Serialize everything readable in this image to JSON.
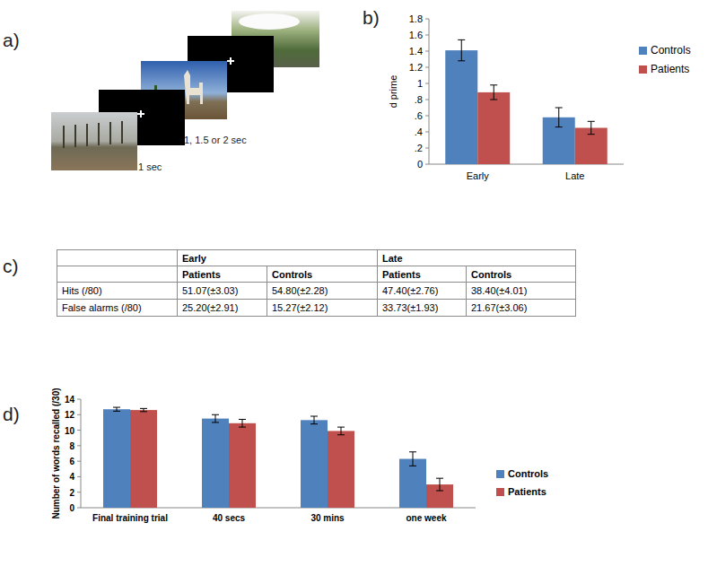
{
  "panel_labels": {
    "a": "a)",
    "b": "b)",
    "c": "c)",
    "d": "d)"
  },
  "stimulus": {
    "image_duration": "1 sec",
    "fixation_duration": "1, 1.5 or 2 sec"
  },
  "chart_data": [
    {
      "type": "bar",
      "ylabel": "d prime",
      "categories": [
        "Early",
        "Late"
      ],
      "series": [
        {
          "name": "Controls",
          "color": "#4f81bd",
          "values": [
            1.41,
            0.58
          ],
          "errors": [
            0.13,
            0.12
          ]
        },
        {
          "name": "Patients",
          "color": "#c0504d",
          "values": [
            0.89,
            0.45
          ],
          "errors": [
            0.09,
            0.08
          ]
        }
      ],
      "ylim": [
        0,
        1.8
      ],
      "yticks": [
        0,
        {
          "value": 0.2,
          "label": ".2"
        },
        {
          "value": 0.4,
          "label": ".4"
        },
        {
          "value": 0.6,
          "label": ".6"
        },
        {
          "value": 0.8,
          "label": ".8"
        },
        1,
        1.2,
        1.4,
        1.6,
        1.8
      ],
      "grid": false,
      "legend": "right"
    },
    {
      "type": "bar",
      "ylabel": "Number of words recalled (/30)",
      "categories": [
        "Final training trial",
        "40 secs",
        "30 mins",
        "one week"
      ],
      "series": [
        {
          "name": "Controls",
          "color": "#4f81bd",
          "values": [
            12.7,
            11.5,
            11.3,
            6.3
          ],
          "errors": [
            0.25,
            0.5,
            0.5,
            0.9
          ]
        },
        {
          "name": "Patients",
          "color": "#c0504d",
          "values": [
            12.6,
            10.9,
            9.9,
            3.0
          ],
          "errors": [
            0.2,
            0.5,
            0.5,
            0.8
          ]
        }
      ],
      "ylim": [
        0,
        14
      ],
      "yticks": [
        0,
        2,
        4,
        6,
        8,
        10,
        12,
        14
      ],
      "grid": false,
      "legend": "right"
    }
  ],
  "table": {
    "groups": [
      "Early",
      "Late"
    ],
    "subheader": [
      "Patients",
      "Controls",
      "Patients",
      "Controls"
    ],
    "rows": [
      [
        "Hits (/80)",
        "51.07(±3.03)",
        "54.80(±2.28)",
        "47.40(±2.76)",
        "38.40(±4.01)"
      ],
      [
        "False alarms (/80)",
        "25.20(±2.91)",
        "15.27(±2.12)",
        "33.73(±1.93)",
        "21.67(±3.06)"
      ]
    ]
  }
}
